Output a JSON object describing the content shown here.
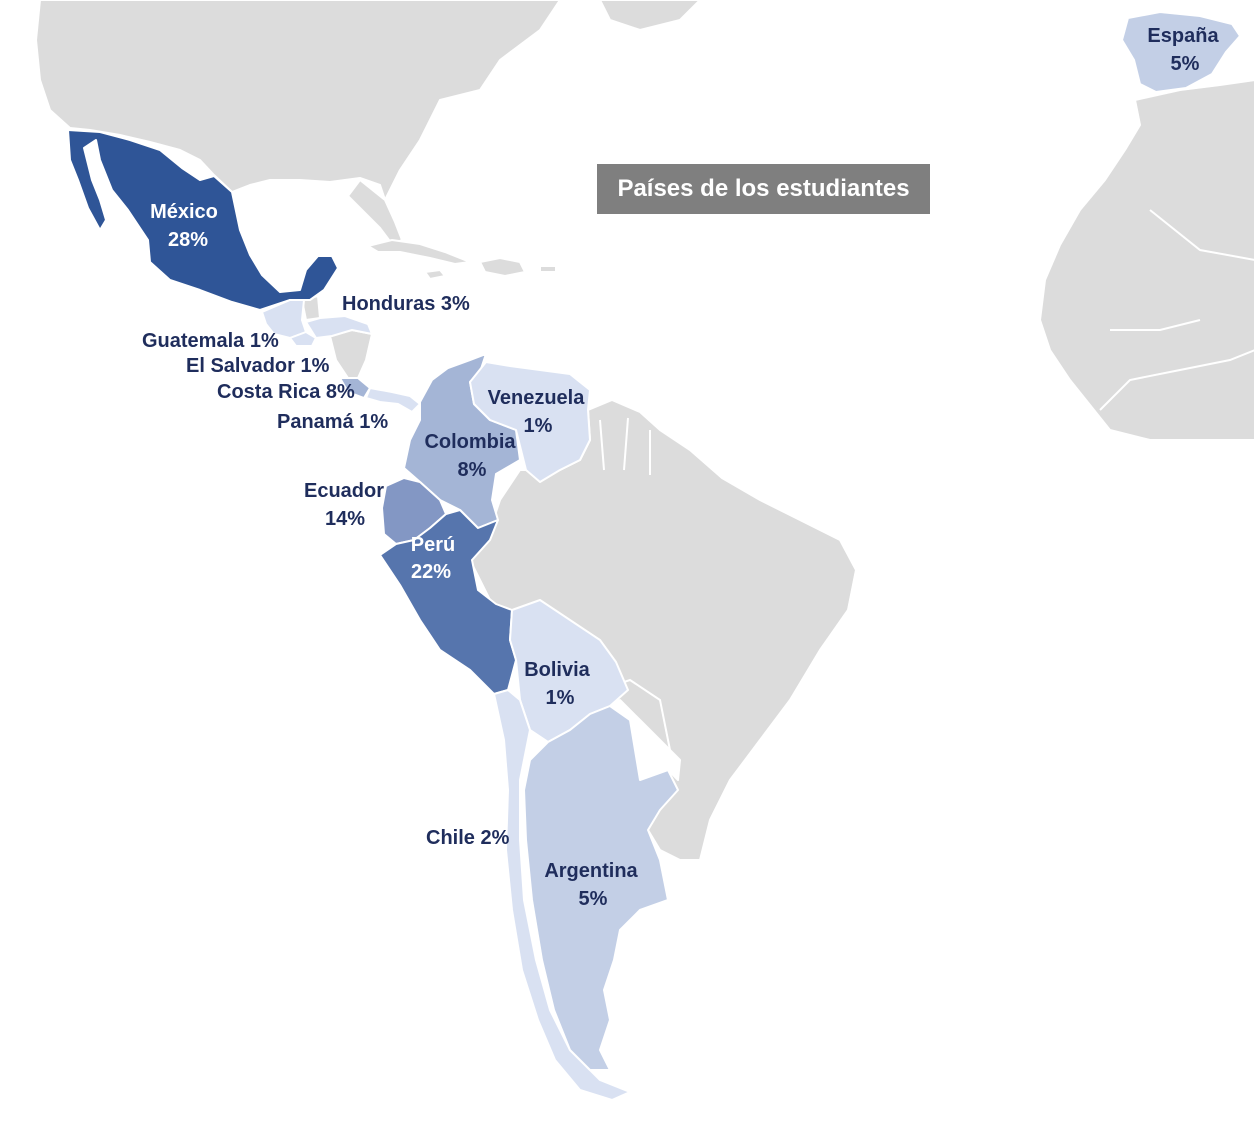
{
  "title": "Países de los estudiantes",
  "colors": {
    "background": "#ffffff",
    "other_land": "#dcdcdc",
    "title_box": "#7f7f7f",
    "level_28": "#2f5597",
    "level_22": "#5675ad",
    "level_14": "#8397c4",
    "level_8": "#a4b5d6",
    "level_5": "#c3cfe6",
    "level_1_3": "#d9e1f2",
    "label_dark": "#1f2d5c",
    "label_light": "#ffffff"
  },
  "countries": [
    {
      "id": "mexico",
      "name": "México",
      "value": "28%",
      "percent": 28,
      "color": "#2f5597"
    },
    {
      "id": "peru",
      "name": "Perú",
      "value": "22%",
      "percent": 22,
      "color": "#5675ad"
    },
    {
      "id": "ecuador",
      "name": "Ecuador",
      "value": "14%",
      "percent": 14,
      "color": "#8397c4"
    },
    {
      "id": "colombia",
      "name": "Colombia",
      "value": "8%",
      "percent": 8,
      "color": "#a4b5d6"
    },
    {
      "id": "costa-rica",
      "name": "Costa Rica",
      "value": "8%",
      "percent": 8,
      "color": "#a4b5d6"
    },
    {
      "id": "espana",
      "name": "España",
      "value": "5%",
      "percent": 5,
      "color": "#c3cfe6"
    },
    {
      "id": "argentina",
      "name": "Argentina",
      "value": "5%",
      "percent": 5,
      "color": "#c3cfe6"
    },
    {
      "id": "honduras",
      "name": "Honduras",
      "value": "3%",
      "percent": 3,
      "color": "#d9e1f2"
    },
    {
      "id": "chile",
      "name": "Chile",
      "value": "2%",
      "percent": 2,
      "color": "#d9e1f2"
    },
    {
      "id": "guatemala",
      "name": "Guatemala",
      "value": "1%",
      "percent": 1,
      "color": "#d9e1f2"
    },
    {
      "id": "el-salvador",
      "name": "El Salvador",
      "value": "1%",
      "percent": 1,
      "color": "#d9e1f2"
    },
    {
      "id": "panama",
      "name": "Panamá",
      "value": "1%",
      "percent": 1,
      "color": "#d9e1f2"
    },
    {
      "id": "venezuela",
      "name": "Venezuela",
      "value": "1%",
      "percent": 1,
      "color": "#d9e1f2"
    },
    {
      "id": "bolivia",
      "name": "Bolivia",
      "value": "1%",
      "percent": 1,
      "color": "#d9e1f2"
    }
  ],
  "labels": {
    "mexico": {
      "name": "México",
      "value": "28%"
    },
    "espana": {
      "name": "España",
      "value": "5%"
    },
    "honduras": "Honduras 3%",
    "guatemala": "Guatemala 1%",
    "el_salvador": "El Salvador 1%",
    "costa_rica": "Costa Rica 8%",
    "panama": "Panamá 1%",
    "venezuela": {
      "name": "Venezuela",
      "value": "1%"
    },
    "colombia": {
      "name": "Colombia",
      "value": "8%"
    },
    "ecuador": {
      "name": "Ecuador",
      "value": "14%"
    },
    "peru": {
      "name": "Perú",
      "value": "22%"
    },
    "bolivia": {
      "name": "Bolivia",
      "value": "1%"
    },
    "chile": "Chile 2%",
    "argentina": {
      "name": "Argentina",
      "value": "5%"
    }
  }
}
